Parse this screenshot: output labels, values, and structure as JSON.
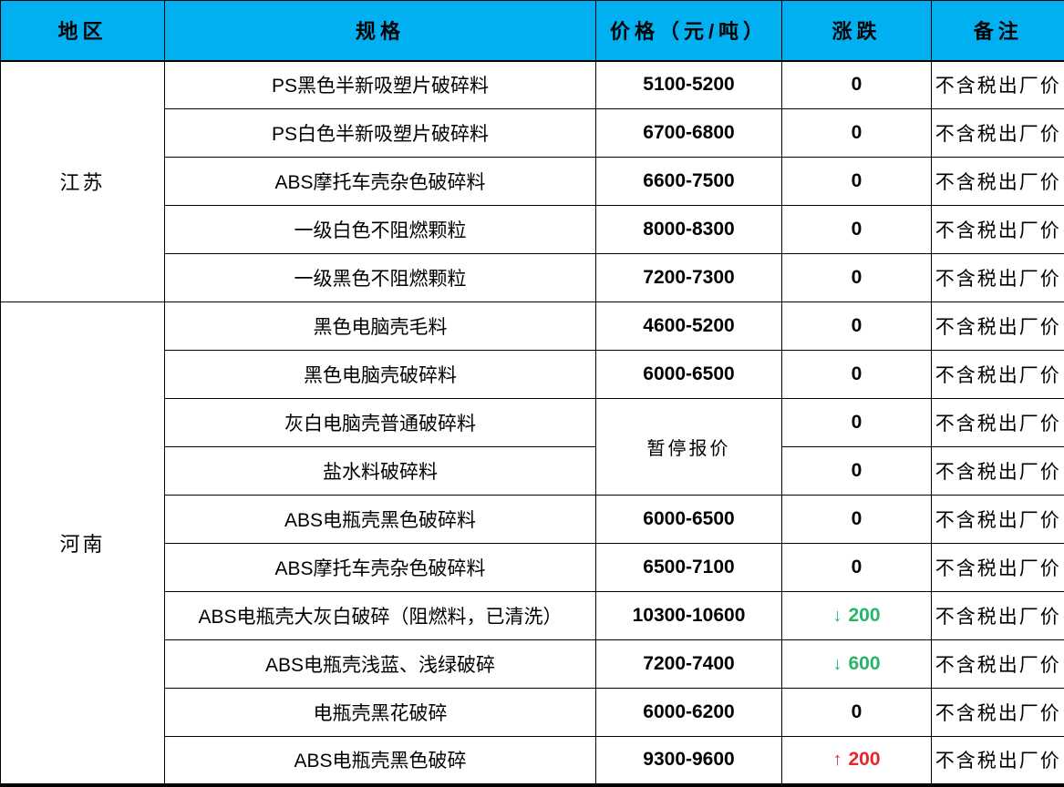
{
  "colors": {
    "header_bg": "#00b0f0",
    "up_red": "#e8262a",
    "down_green": "#27b567",
    "border": "#000000"
  },
  "icons": {
    "down_arrow": "↓",
    "up_arrow": "↑"
  },
  "table": {
    "headers": [
      "地区",
      "规格",
      "价格（元/吨）",
      "涨跌",
      "备注"
    ],
    "regions": [
      {
        "name": "江苏",
        "rows": [
          {
            "spec": "PS黑色半新吸塑片破碎料",
            "price": "5100-5200",
            "change": "0",
            "change_dir": "flat",
            "note": "不含税出厂价"
          },
          {
            "spec": "PS白色半新吸塑片破碎料",
            "price": "6700-6800",
            "change": "0",
            "change_dir": "flat",
            "note": "不含税出厂价"
          },
          {
            "spec": "ABS摩托车壳杂色破碎料",
            "price": "6600-7500",
            "change": "0",
            "change_dir": "flat",
            "note": "不含税出厂价"
          },
          {
            "spec": "一级白色不阻燃颗粒",
            "price": "8000-8300",
            "change": "0",
            "change_dir": "flat",
            "note": "不含税出厂价"
          },
          {
            "spec": "一级黑色不阻燃颗粒",
            "price": "7200-7300",
            "change": "0",
            "change_dir": "flat",
            "note": "不含税出厂价"
          }
        ]
      },
      {
        "name": "河南",
        "rows": [
          {
            "spec": "黑色电脑壳毛料",
            "price": "4600-5200",
            "change": "0",
            "change_dir": "flat",
            "note": "不含税出厂价"
          },
          {
            "spec": "黑色电脑壳破碎料",
            "price": "6000-6500",
            "change": "0",
            "change_dir": "flat",
            "note": "不含税出厂价"
          },
          {
            "spec": "灰白电脑壳普通破碎料",
            "price": "暂停报价",
            "price_kind": "text",
            "price_rowspan": 2,
            "change": "0",
            "change_dir": "flat",
            "note": "不含税出厂价"
          },
          {
            "spec": "盐水料破碎料",
            "price": null,
            "change": "0",
            "change_dir": "flat",
            "note": "不含税出厂价"
          },
          {
            "spec": "ABS电瓶壳黑色破碎料",
            "price": "6000-6500",
            "change": "0",
            "change_dir": "flat",
            "note": "不含税出厂价"
          },
          {
            "spec": "ABS摩托车壳杂色破碎料",
            "price": "6500-7100",
            "change": "0",
            "change_dir": "flat",
            "note": "不含税出厂价"
          },
          {
            "spec": "ABS电瓶壳大灰白破碎（阻燃料，已清洗）",
            "price": "10300-10600",
            "change": "200",
            "change_dir": "down",
            "note": "不含税出厂价"
          },
          {
            "spec": "ABS电瓶壳浅蓝、浅绿破碎",
            "price": "7200-7400",
            "change": "600",
            "change_dir": "down",
            "note": "不含税出厂价"
          },
          {
            "spec": "电瓶壳黑花破碎",
            "price": "6000-6200",
            "change": "0",
            "change_dir": "flat",
            "note": "不含税出厂价"
          },
          {
            "spec": "ABS电瓶壳黑色破碎",
            "price": "9300-9600",
            "change": "200",
            "change_dir": "up",
            "note": "不含税出厂价"
          }
        ]
      }
    ]
  }
}
